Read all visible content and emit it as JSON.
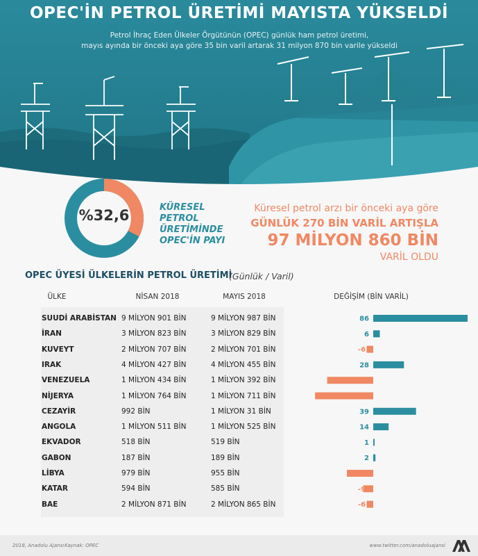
{
  "header": {
    "title": "OPEC'İN PETROL ÜRETİMİ MAYISTA YÜKSELDİ",
    "subtitle_line1": "Petrol İhraç Eden Ülkeler Örgütünün (OPEC) günlük ham petrol üretimi,",
    "subtitle_line2": "mayıs ayında bir önceki aya göre 35 bin varil artarak 31 milyon 870 bin varile yükseldi"
  },
  "share": {
    "value_text": "%32,6",
    "value": 32.6,
    "label_lines": [
      "KÜRESEL",
      "PETROL",
      "ÜRETİMİNDE",
      "OPEC'İN PAYI"
    ]
  },
  "increase": {
    "line1": "Küresel petrol arzı bir önceki aya göre",
    "line2": "GÜNLÜK 270 BİN VARİL ARTIŞLA",
    "line3": "97 MİLYON 860 BİN",
    "line4": "VARİL OLDU"
  },
  "table": {
    "title": "OPEC ÜYESİ ÜLKELERİN PETROL ÜRETİMİ",
    "unit": "(Günlük / Varil)",
    "col_country": "ÜLKE",
    "col_april": "NİSAN 2018",
    "col_may": "MAYIS 2018",
    "col_change": "DEĞİŞİM (BİN VARİL)",
    "rows": [
      {
        "country": "SUUDİ ARABİSTAN",
        "april": "9 MİLYON 901 BİN",
        "may": "9 MİLYON 987 BİN"
      },
      {
        "country": "İRAN",
        "april": "3 MİLYON 823 BİN",
        "may": "3 MİLYON 829 BİN"
      },
      {
        "country": "KUVEYT",
        "april": "2 MİLYON 707 BİN",
        "may": "2 MİLYON 701 BİN"
      },
      {
        "country": "IRAK",
        "april": "4 MİLYON 427 BİN",
        "may": "4 MİLYON 455 BİN"
      },
      {
        "country": "VENEZUELA",
        "april": "1 MİLYON 434 BİN",
        "may": "1 MİLYON 392 BİN"
      },
      {
        "country": "NİJERYA",
        "april": "1 MİLYON 764 BİN",
        "may": "1 MİLYON 711 BİN"
      },
      {
        "country": "CEZAYİR",
        "april": "992 BİN",
        "may": "1 MİLYON 31 BİN"
      },
      {
        "country": "ANGOLA",
        "april": "1 MİLYON 511 BİN",
        "may": "1 MİLYON 525 BİN"
      },
      {
        "country": "EKVADOR",
        "april": "518 BİN",
        "may": "519 BİN"
      },
      {
        "country": "GABON",
        "april": "187 BİN",
        "may": "189 BİN"
      },
      {
        "country": "LİBYA",
        "april": "979 BİN",
        "may": "955 BİN"
      },
      {
        "country": "KATAR",
        "april": "594 BİN",
        "may": "585 BİN"
      },
      {
        "country": "BAE",
        "april": "2 MİLYON 871 BİN",
        "may": "2 MİLYON 865 BİN"
      }
    ]
  },
  "chart_data": {
    "type": "bar",
    "orientation": "horizontal",
    "categories": [
      "SUUDİ ARABİSTAN",
      "İRAN",
      "KUVEYT",
      "IRAK",
      "VENEZUELA",
      "NİJERYA",
      "CEZAYİR",
      "ANGOLA",
      "EKVADOR",
      "GABON",
      "LİBYA",
      "KATAR",
      "BAE"
    ],
    "values": [
      86,
      6,
      -6,
      28,
      -42,
      -53,
      39,
      14,
      1,
      2,
      -24,
      -9,
      -6
    ],
    "title": "DEĞİŞİM (BİN VARİL)",
    "colors": {
      "positive": "#2b8ea0",
      "negative": "#f08863"
    }
  },
  "footer": {
    "copyright": "2018, Anadolu Ajansı",
    "source": "Kaynak: OPEC",
    "twitter": "www.twitter.com/anadoluajansi"
  },
  "colors": {
    "teal": "#2b8ea0",
    "dark_teal": "#1f6f81",
    "orange": "#f08863",
    "navy": "#1d4e63"
  }
}
